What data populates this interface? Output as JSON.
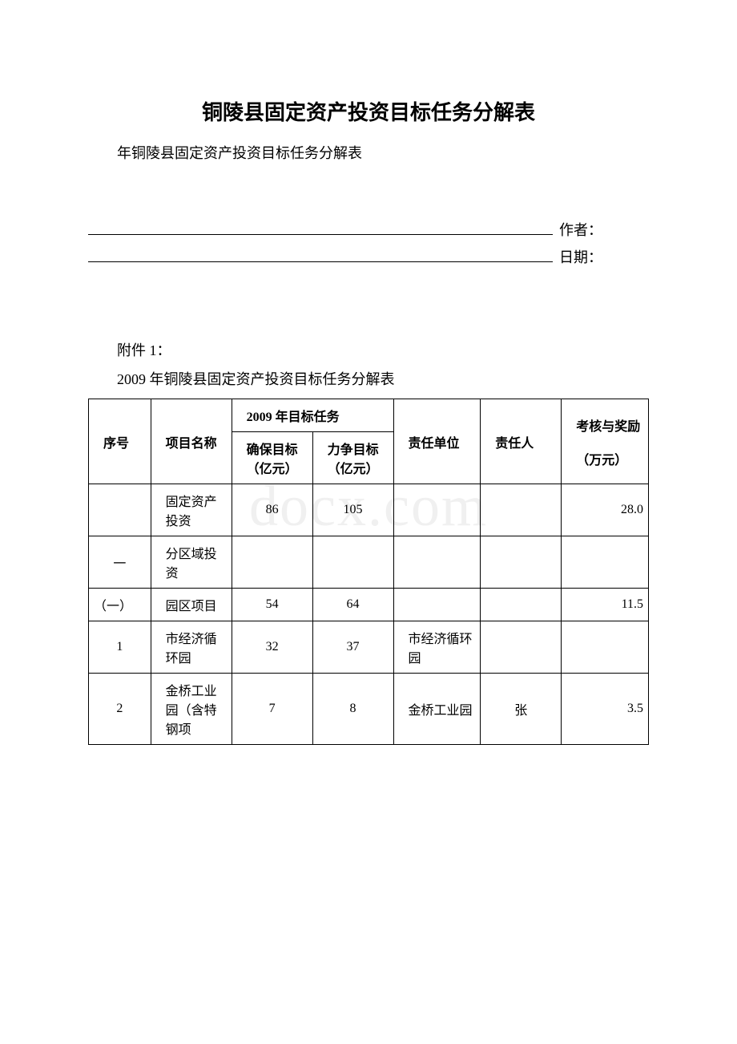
{
  "main_title": "铜陵县固定资产投资目标任务分解表",
  "subtitle": "年铜陵县固定资产投资目标任务分解表",
  "meta": {
    "author_label": "作者：",
    "date_label": "日期："
  },
  "attachment_label": "附件 1：",
  "table_title": "2009 年铜陵县固定资产投资目标任务分解表",
  "watermark": "docx.com",
  "table": {
    "headers": {
      "seq": "序号",
      "name": "项目名称",
      "target_group": "2009 年目标任务",
      "target1": "确保目标（亿元）",
      "target2": "力争目标（亿元）",
      "unit": "责任单位",
      "person": "责任人",
      "reward": "考核与奖励",
      "reward_unit": "（万元）"
    },
    "rows": [
      {
        "seq": "",
        "name": "固定资产投资",
        "t1": "86",
        "t2": "105",
        "unit": "",
        "person": "",
        "reward": "28.0"
      },
      {
        "seq": "一",
        "name": "分区域投资",
        "t1": "",
        "t2": "",
        "unit": "",
        "person": "",
        "reward": ""
      },
      {
        "seq": "（一）",
        "name": "园区项目",
        "t1": "54",
        "t2": "64",
        "unit": "",
        "person": "",
        "reward": "11.5"
      },
      {
        "seq": "1",
        "name": "市经济循环园",
        "t1": "32",
        "t2": "37",
        "unit": "市经济循环园",
        "person": "",
        "reward": ""
      },
      {
        "seq": "2",
        "name": "金桥工业园（含特钢项",
        "t1": "7",
        "t2": "8",
        "unit": "金桥工业园",
        "person": "张",
        "reward": "3.5"
      }
    ]
  },
  "colors": {
    "background": "#ffffff",
    "text": "#000000",
    "border": "#000000",
    "watermark": "#f0f0f0"
  }
}
